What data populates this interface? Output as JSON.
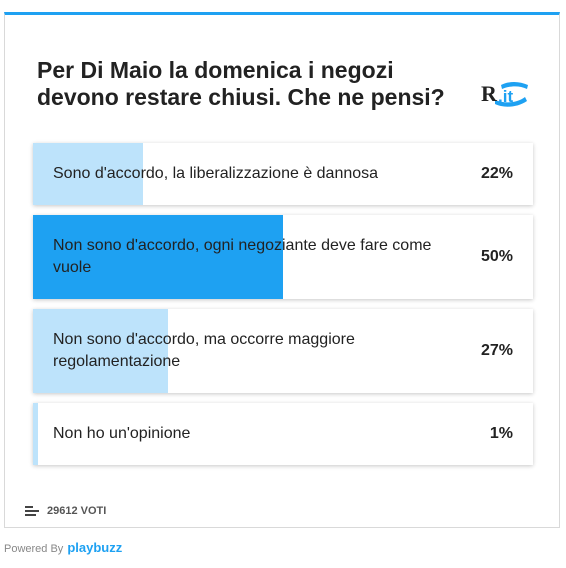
{
  "poll": {
    "question": "Per Di Maio la domenica i negozi devono restare chiusi. Che ne pensi?",
    "logo_text": "R.it",
    "accent_color": "#1ea1f2",
    "fill_light": "#bde3fb",
    "answers": [
      {
        "label": "Sono d'accordo, la liberalizzazione è dannosa",
        "percent_label": "22%",
        "percent": 22,
        "selected": false
      },
      {
        "label": "Non sono d'accordo, ogni negoziante deve fare come vuole",
        "percent_label": "50%",
        "percent": 50,
        "selected": true
      },
      {
        "label": "Non sono d'accordo, ma occorre maggiore regolamentazione",
        "percent_label": "27%",
        "percent": 27,
        "selected": false
      },
      {
        "label": "Non ho un'opinione",
        "percent_label": "1%",
        "percent": 1,
        "selected": false
      }
    ],
    "votes": "29612 VOTI"
  },
  "footer": {
    "powered_by": "Powered By",
    "brand": "playbuzz"
  }
}
